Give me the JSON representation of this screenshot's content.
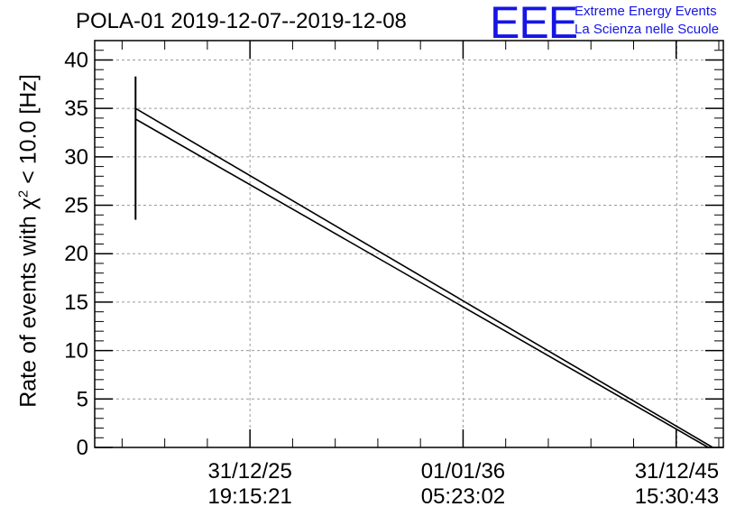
{
  "title": "POLA-01 2019-12-07--2019-12-08",
  "logo": {
    "mark": "EEE",
    "line1": "Extreme Energy Events",
    "line2": "La Scienza nelle Scuole"
  },
  "chart_data": {
    "type": "line",
    "title": "POLA-01 2019-12-07--2019-12-08",
    "xlabel": "",
    "ylabel": "Rate of events with χ² < 10.0 [Hz]",
    "ylabel_parts": {
      "pre": "Rate of events with χ",
      "sup": "2",
      "post": " < 10.0 [Hz]"
    },
    "ylim": [
      0,
      42
    ],
    "yticks": [
      0,
      5,
      10,
      15,
      20,
      25,
      30,
      35,
      40
    ],
    "grid": true,
    "x_ticks": [
      {
        "date": "31/12/25",
        "time": "19:15:21",
        "t": 0.247
      },
      {
        "date": "01/01/36",
        "time": "05:23:02",
        "t": 0.586
      },
      {
        "date": "31/12/45",
        "time": "15:30:43",
        "t": 0.926
      }
    ],
    "xlim_t": [
      0,
      1
    ],
    "series": [
      {
        "values": [
          [
            0.065,
            35.0
          ],
          [
            0.983,
            0.0
          ]
        ]
      },
      {
        "values": [
          [
            0.065,
            33.9
          ],
          [
            0.976,
            0.0
          ]
        ]
      }
    ],
    "error_bar": {
      "t": 0.065,
      "low": 23.5,
      "high": 38.3
    },
    "colors": {
      "line": "#000000",
      "logo": "#1515e6",
      "grid": "#9a9a9a"
    }
  }
}
